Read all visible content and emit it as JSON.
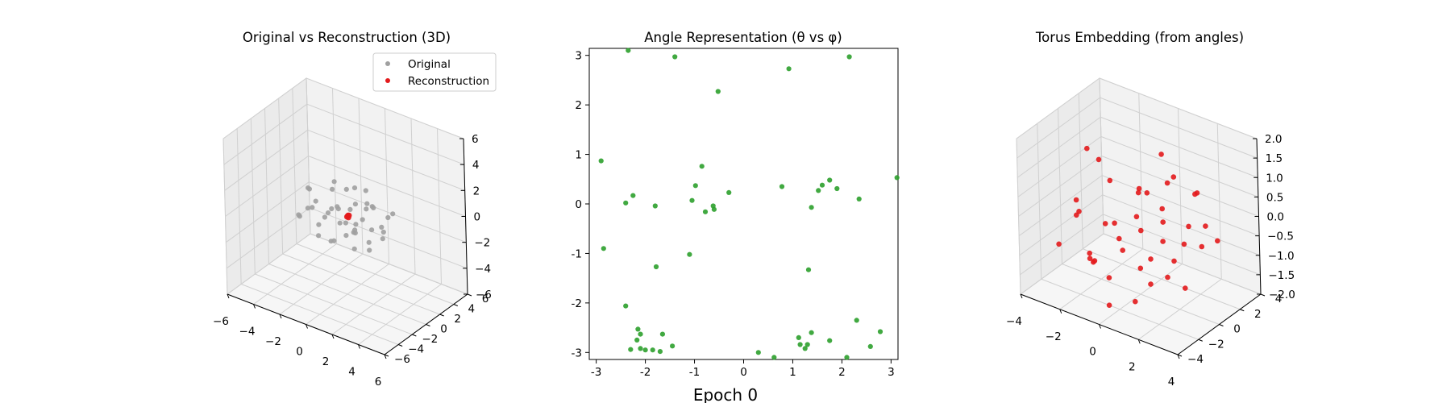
{
  "figure": {
    "suptitle": "Epoch 0"
  },
  "colors": {
    "original": "#a0a0a0",
    "reconstruction": "#e31a1c",
    "angles": "#2ca02c",
    "torus": "#e31a1c"
  },
  "chart_data": [
    {
      "type": "scatter3d",
      "title": "Original vs Reconstruction (3D)",
      "legend": {
        "placement": "upper right",
        "entries": [
          "Original",
          "Reconstruction"
        ]
      },
      "xlim": [
        -6,
        6
      ],
      "ylim": [
        -6,
        6
      ],
      "zlim": [
        -6,
        6
      ],
      "xticks": [
        "−6",
        "−4",
        "−2",
        "0",
        "2",
        "4",
        "6"
      ],
      "yticks": [
        "−6",
        "−4",
        "−2",
        "0",
        "2",
        "4",
        "6"
      ],
      "zticks": [
        "−6",
        "−4",
        "−2",
        "0",
        "2",
        "4",
        "6"
      ],
      "series": [
        {
          "name": "Original",
          "points": [
            [
              -3.1,
              0.5,
              0.8
            ],
            [
              -2.8,
              1.0,
              -0.3
            ],
            [
              -2.5,
              -0.4,
              1.3
            ],
            [
              -2.2,
              1.6,
              -1.2
            ],
            [
              -2.0,
              -1.0,
              0.3
            ],
            [
              -1.7,
              0.2,
              -0.8
            ],
            [
              -1.5,
              1.3,
              1.6
            ],
            [
              -1.3,
              -1.5,
              -1.4
            ],
            [
              -1.0,
              0.7,
              0.1
            ],
            [
              -0.8,
              -0.3,
              1.9
            ],
            [
              -0.6,
              1.8,
              -0.4
            ],
            [
              -0.4,
              -1.2,
              0.9
            ],
            [
              -0.2,
              0.4,
              -1.7
            ],
            [
              0.0,
              -0.8,
              -0.2
            ],
            [
              0.2,
              1.1,
              0.6
            ],
            [
              0.4,
              -1.7,
              1.4
            ],
            [
              0.6,
              0.0,
              -1.0
            ],
            [
              0.8,
              1.5,
              0.3
            ],
            [
              1.0,
              -0.5,
              -0.7
            ],
            [
              1.2,
              0.9,
              1.1
            ],
            [
              1.4,
              -1.3,
              0.0
            ],
            [
              1.6,
              0.3,
              -1.5
            ],
            [
              1.8,
              -0.9,
              0.8
            ],
            [
              2.0,
              1.4,
              -0.6
            ],
            [
              2.2,
              -0.2,
              1.7
            ],
            [
              2.4,
              0.8,
              -1.1
            ],
            [
              2.6,
              -1.1,
              0.4
            ],
            [
              2.8,
              0.2,
              -0.2
            ],
            [
              3.0,
              1.2,
              0.9
            ],
            [
              -2.9,
              -1.3,
              -0.5
            ],
            [
              -2.4,
              0.6,
              -1.8
            ],
            [
              -1.9,
              -1.8,
              0.6
            ],
            [
              -0.9,
              1.9,
              1.0
            ],
            [
              0.1,
              -1.9,
              -1.1
            ],
            [
              0.7,
              1.7,
              1.6
            ],
            [
              1.5,
              -1.6,
              -1.3
            ],
            [
              2.3,
              1.8,
              0.1
            ],
            [
              2.7,
              -1.7,
              -0.9
            ],
            [
              -3.2,
              -0.6,
              -1.0
            ],
            [
              -1.1,
              -0.1,
              -2.3
            ],
            [
              0.5,
              0.5,
              2.2
            ],
            [
              1.9,
              0.5,
              1.2
            ],
            [
              -0.3,
              2.0,
              -1.5
            ],
            [
              1.1,
              -2.0,
              0.7
            ]
          ]
        },
        {
          "name": "Reconstruction",
          "points": [
            [
              0.2,
              0.0,
              0.1
            ],
            [
              0.25,
              0.05,
              0.15
            ],
            [
              0.15,
              -0.05,
              0.05
            ],
            [
              0.22,
              0.02,
              0.0
            ],
            [
              0.18,
              0.04,
              0.12
            ]
          ]
        }
      ]
    },
    {
      "type": "scatter",
      "title": "Angle Representation (θ vs φ)",
      "xlim": [
        -3.14159,
        3.14159
      ],
      "ylim": [
        -3.14159,
        3.14159
      ],
      "xticks": [
        -3,
        -2,
        -1,
        0,
        1,
        2,
        3
      ],
      "yticks": [
        -3,
        -2,
        -1,
        0,
        1,
        2,
        3
      ],
      "points": [
        [
          -2.35,
          3.1
        ],
        [
          -1.4,
          2.97
        ],
        [
          0.92,
          2.73
        ],
        [
          2.15,
          2.97
        ],
        [
          -2.9,
          0.87
        ],
        [
          -0.52,
          2.27
        ],
        [
          -0.85,
          0.76
        ],
        [
          -0.98,
          0.37
        ],
        [
          -0.3,
          0.23
        ],
        [
          -1.05,
          0.07
        ],
        [
          -0.62,
          -0.04
        ],
        [
          -0.6,
          -0.11
        ],
        [
          -0.78,
          -0.16
        ],
        [
          -2.4,
          0.02
        ],
        [
          -2.25,
          0.17
        ],
        [
          -1.8,
          -0.04
        ],
        [
          3.12,
          0.53
        ],
        [
          0.78,
          0.35
        ],
        [
          1.75,
          0.48
        ],
        [
          1.6,
          0.38
        ],
        [
          1.9,
          0.31
        ],
        [
          1.52,
          0.27
        ],
        [
          2.35,
          0.1
        ],
        [
          1.38,
          -0.07
        ],
        [
          -2.85,
          -0.9
        ],
        [
          -1.1,
          -1.02
        ],
        [
          -1.78,
          -1.27
        ],
        [
          1.32,
          -1.33
        ],
        [
          -2.4,
          -2.06
        ],
        [
          -2.15,
          -2.53
        ],
        [
          -2.1,
          -2.63
        ],
        [
          -2.17,
          -2.75
        ],
        [
          -1.65,
          -2.63
        ],
        [
          -2.3,
          -2.94
        ],
        [
          -2.0,
          -2.95
        ],
        [
          -2.1,
          -2.92
        ],
        [
          -1.85,
          -2.95
        ],
        [
          -1.7,
          -2.98
        ],
        [
          -1.45,
          -2.87
        ],
        [
          0.3,
          -3.0
        ],
        [
          0.62,
          -3.1
        ],
        [
          1.12,
          -2.7
        ],
        [
          1.38,
          -2.6
        ],
        [
          1.15,
          -2.84
        ],
        [
          1.3,
          -2.84
        ],
        [
          1.25,
          -2.92
        ],
        [
          1.75,
          -2.76
        ],
        [
          2.1,
          -3.1
        ],
        [
          2.3,
          -2.35
        ],
        [
          2.78,
          -2.58
        ],
        [
          2.58,
          -2.88
        ]
      ]
    },
    {
      "type": "scatter3d",
      "title": "Torus Embedding (from angles)",
      "xlim": [
        -4.5,
        4.5
      ],
      "ylim": [
        -4.5,
        4.5
      ],
      "zlim": [
        -2.0,
        2.0
      ],
      "xticks": [
        "−4",
        "−2",
        "0",
        "2",
        "4"
      ],
      "yticks": [
        "−4",
        "−2",
        "0",
        "2",
        "4"
      ],
      "zticks": [
        "−2.0",
        "−1.5",
        "−1.0",
        "−0.5",
        "0.0",
        "0.5",
        "1.0",
        "1.5",
        "2.0"
      ],
      "points": [
        [
          -3.6,
          1.3,
          0.9
        ],
        [
          -3.2,
          1.8,
          0.6
        ],
        [
          -2.9,
          -1.0,
          -0.2
        ],
        [
          -2.4,
          -2.2,
          0.0
        ],
        [
          -2.1,
          0.3,
          -0.6
        ],
        [
          -1.7,
          2.9,
          -0.8
        ],
        [
          -1.2,
          -2.6,
          -0.9
        ],
        [
          -0.8,
          1.6,
          0.3
        ],
        [
          -0.4,
          -1.4,
          -0.4
        ],
        [
          0.1,
          2.4,
          1.2
        ],
        [
          0.4,
          -0.7,
          0.8
        ],
        [
          0.8,
          1.1,
          -0.2
        ],
        [
          1.2,
          -2.8,
          -1.5
        ],
        [
          1.6,
          0.2,
          1.1
        ],
        [
          2.0,
          2.6,
          0.5
        ],
        [
          2.4,
          -1.9,
          0.1
        ],
        [
          2.8,
          0.9,
          0.9
        ],
        [
          3.2,
          -0.6,
          0.4
        ],
        [
          3.6,
          1.7,
          -0.3
        ],
        [
          -3.4,
          -2.3,
          -0.9
        ],
        [
          -2.6,
          2.2,
          -1.0
        ],
        [
          -1.9,
          -1.8,
          -1.1
        ],
        [
          -1.3,
          0.6,
          -1.2
        ],
        [
          -0.6,
          -2.2,
          -1.3
        ],
        [
          0.2,
          0.8,
          -1.2
        ],
        [
          0.9,
          -1.6,
          -0.9
        ],
        [
          1.5,
          2.0,
          -0.8
        ],
        [
          2.2,
          -0.4,
          -0.7
        ],
        [
          2.9,
          1.3,
          -0.5
        ],
        [
          3.4,
          -1.5,
          -1.0
        ],
        [
          -3.0,
          0.2,
          -1.5
        ],
        [
          -0.2,
          -3.0,
          -1.8
        ],
        [
          1.9,
          -2.4,
          -1.0
        ],
        [
          0.5,
          2.9,
          0.6
        ],
        [
          -1.5,
          -0.2,
          0.7
        ],
        [
          2.6,
          2.3,
          -0.2
        ],
        [
          -2.2,
          -0.9,
          -1.4
        ],
        [
          1.1,
          0.5,
          0.3
        ],
        [
          0.0,
          0.2,
          -0.4
        ],
        [
          -0.9,
          2.6,
          0.0
        ],
        [
          3.0,
          -2.6,
          -0.6
        ],
        [
          -3.8,
          0.4,
          -0.3
        ]
      ]
    }
  ]
}
